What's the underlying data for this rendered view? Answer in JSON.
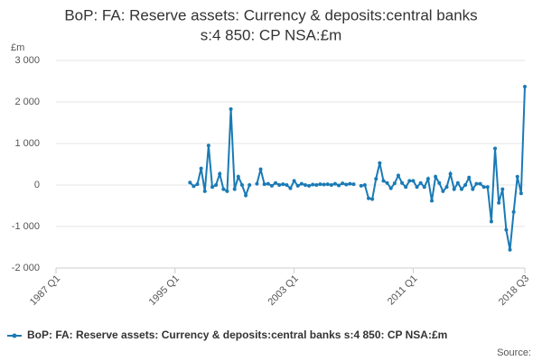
{
  "chart_data": {
    "type": "line",
    "title": [
      "BoP: FA: Reserve assets: Currency & deposits:central banks",
      "s:4 850: CP NSA:£m"
    ],
    "y_unit": "£m",
    "source": "Source:",
    "categories": [
      "1987 Q1",
      null,
      null,
      null,
      null,
      null,
      null,
      null,
      null,
      null,
      null,
      null,
      null,
      null,
      null,
      null,
      null,
      null,
      null,
      null,
      null,
      null,
      null,
      null,
      null,
      null,
      null,
      null,
      null,
      null,
      null,
      null,
      "1995 Q1",
      null,
      null,
      null,
      null,
      null,
      null,
      null,
      null,
      null,
      null,
      null,
      null,
      null,
      null,
      null,
      null,
      null,
      null,
      null,
      null,
      null,
      null,
      null,
      null,
      null,
      null,
      null,
      null,
      null,
      null,
      null,
      "2003 Q1",
      null,
      null,
      null,
      null,
      null,
      null,
      null,
      null,
      null,
      null,
      null,
      null,
      null,
      null,
      null,
      null,
      null,
      null,
      null,
      null,
      null,
      null,
      null,
      null,
      null,
      null,
      null,
      null,
      null,
      null,
      null,
      "2011 Q1",
      null,
      null,
      null,
      null,
      null,
      null,
      null,
      null,
      null,
      null,
      null,
      null,
      null,
      null,
      null,
      null,
      null,
      null,
      null,
      null,
      null,
      null,
      null,
      null,
      null,
      null,
      null,
      null,
      null,
      "2018 Q3"
    ],
    "series": [
      {
        "name": "BoP: FA: Reserve assets: Currency & deposits:central banks s:4 850: CP NSA:£m",
        "color": "#1a7ab5",
        "values": [
          null,
          null,
          null,
          null,
          null,
          null,
          null,
          null,
          null,
          null,
          null,
          null,
          null,
          null,
          null,
          null,
          null,
          null,
          null,
          null,
          null,
          null,
          null,
          null,
          null,
          null,
          null,
          null,
          null,
          null,
          null,
          null,
          null,
          null,
          null,
          null,
          60,
          -30,
          20,
          400,
          -150,
          950,
          -50,
          0,
          270,
          -100,
          -150,
          1830,
          -100,
          200,
          0,
          -250,
          0,
          null,
          30,
          380,
          20,
          30,
          -20,
          50,
          0,
          20,
          0,
          -80,
          100,
          -20,
          30,
          0,
          -20,
          10,
          0,
          20,
          10,
          20,
          0,
          30,
          -10,
          40,
          10,
          30,
          20,
          null,
          -20,
          0,
          -320,
          -340,
          150,
          530,
          100,
          50,
          -80,
          40,
          230,
          50,
          -50,
          100,
          100,
          -50,
          50,
          -50,
          150,
          -380,
          200,
          50,
          -150,
          -50,
          270,
          -100,
          50,
          -100,
          0,
          180,
          -100,
          30,
          30,
          -50,
          -50,
          -880,
          880,
          -430,
          -100,
          -1080,
          -1560,
          -650,
          200,
          -200,
          2370
        ]
      }
    ],
    "ylim": [
      -2000,
      3000
    ],
    "yticks": [
      {
        "value": -2000,
        "label": "-2 000"
      },
      {
        "value": -1000,
        "label": "-1 000"
      },
      0,
      {
        "value": 1000,
        "label": "1 000"
      },
      {
        "value": 2000,
        "label": "2 000"
      },
      {
        "value": 3000,
        "label": "3 000"
      }
    ],
    "grid": true,
    "legend": "bottom"
  }
}
